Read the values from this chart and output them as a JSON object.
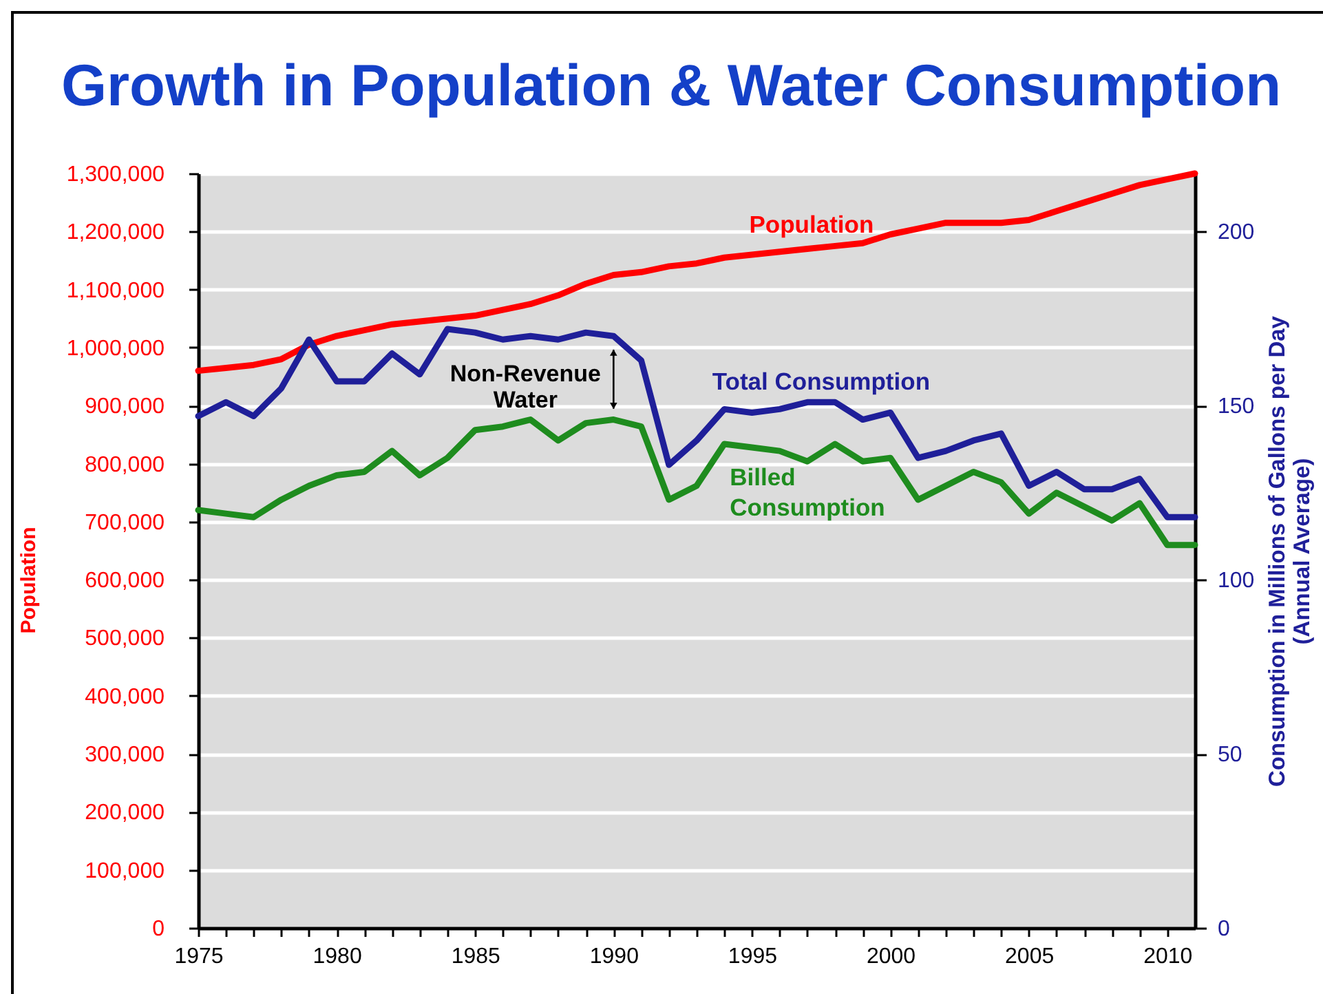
{
  "chart_data": {
    "type": "line",
    "title": "Growth in Population & Water Consumption",
    "ylabel": "Population",
    "y2label": "Consumption in Millions of Gallons per Day (Annual Average)",
    "x": [
      1975,
      1976,
      1977,
      1978,
      1979,
      1980,
      1981,
      1982,
      1983,
      1984,
      1985,
      1986,
      1987,
      1988,
      1989,
      1990,
      1991,
      1992,
      1993,
      1994,
      1995,
      1996,
      1997,
      1998,
      1999,
      2000,
      2001,
      2002,
      2003,
      2004,
      2005,
      2006,
      2007,
      2008,
      2009,
      2010,
      2011
    ],
    "xlim": [
      1975,
      2011
    ],
    "xticks": [
      1975,
      {
        "value": 1976,
        "label": null
      },
      {
        "value": 1977,
        "label": null
      },
      {
        "value": 1978,
        "label": null
      },
      {
        "value": 1979,
        "label": null
      },
      1980,
      {
        "value": 1981,
        "label": null
      },
      {
        "value": 1982,
        "label": null
      },
      {
        "value": 1983,
        "label": null
      },
      {
        "value": 1984,
        "label": null
      },
      1985,
      {
        "value": 1986,
        "label": null
      },
      {
        "value": 1987,
        "label": null
      },
      {
        "value": 1988,
        "label": null
      },
      {
        "value": 1989,
        "label": null
      },
      1990,
      {
        "value": 1991,
        "label": null
      },
      {
        "value": 1992,
        "label": null
      },
      {
        "value": 1993,
        "label": null
      },
      {
        "value": 1994,
        "label": null
      },
      1995,
      {
        "value": 1996,
        "label": null
      },
      {
        "value": 1997,
        "label": null
      },
      {
        "value": 1998,
        "label": null
      },
      {
        "value": 1999,
        "label": null
      },
      2000,
      {
        "value": 2001,
        "label": null
      },
      {
        "value": 2002,
        "label": null
      },
      {
        "value": 2003,
        "label": null
      },
      {
        "value": 2004,
        "label": null
      },
      2005,
      {
        "value": 2006,
        "label": null
      },
      {
        "value": 2007,
        "label": null
      },
      {
        "value": 2008,
        "label": null
      },
      {
        "value": 2009,
        "label": null
      },
      2010
    ],
    "ylim": [
      0,
      1300000
    ],
    "yticks": [
      0,
      {
        "value": 100000,
        "label": "100,000"
      },
      {
        "value": 200000,
        "label": "200,000"
      },
      {
        "value": 300000,
        "label": "300,000"
      },
      {
        "value": 400000,
        "label": "400,000"
      },
      {
        "value": 500000,
        "label": "500,000"
      },
      {
        "value": 600000,
        "label": "600,000"
      },
      {
        "value": 700000,
        "label": "700,000"
      },
      {
        "value": 800000,
        "label": "800,000"
      },
      {
        "value": 900000,
        "label": "900,000"
      },
      {
        "value": 1000000,
        "label": "1,000,000"
      },
      {
        "value": 1100000,
        "label": "1,100,000"
      },
      {
        "value": 1200000,
        "label": "1,200,000"
      },
      {
        "value": 1300000,
        "label": "1,300,000"
      }
    ],
    "y2lim": [
      0,
      216.7
    ],
    "y2ticks": [
      0,
      50,
      100,
      150,
      200
    ],
    "grid": "y",
    "legend": false,
    "series": [
      {
        "name": "Population",
        "color": "#ff0000",
        "values": [
          960000,
          965000,
          970000,
          980000,
          1005000,
          1020000,
          1030000,
          1040000,
          1045000,
          1050000,
          1055000,
          1065000,
          1075000,
          1090000,
          1110000,
          1125000,
          1130000,
          1140000,
          1145000,
          1155000,
          1160000,
          1165000,
          1170000,
          1175000,
          1180000,
          1195000,
          1205000,
          1215000,
          1215000,
          1215000,
          1220000,
          1235000,
          1250000,
          1265000,
          1280000,
          1290000,
          1300000
        ]
      },
      {
        "name": "Total Consumption",
        "color": "#1f1f99",
        "axis": "y2",
        "values": [
          147,
          151,
          147,
          155,
          169,
          157,
          157,
          165,
          159,
          172,
          171,
          169,
          170,
          169,
          171,
          170,
          163,
          133,
          140,
          149,
          148,
          149,
          151,
          151,
          146,
          148,
          135,
          137,
          140,
          142,
          127,
          131,
          126,
          126,
          129,
          118,
          118
        ]
      },
      {
        "name": "Billed Consumption",
        "color": "#1e8c1e",
        "axis": "y2",
        "values": [
          120,
          119,
          118,
          123,
          127,
          130,
          131,
          137,
          130,
          135,
          143,
          144,
          146,
          140,
          145,
          146,
          144,
          123,
          127,
          139,
          138,
          137,
          134,
          139,
          134,
          135,
          123,
          127,
          131,
          128,
          119,
          125,
          121,
          117,
          122,
          110,
          110
        ]
      }
    ],
    "annotations": [
      "Non-Revenue Water"
    ]
  }
}
